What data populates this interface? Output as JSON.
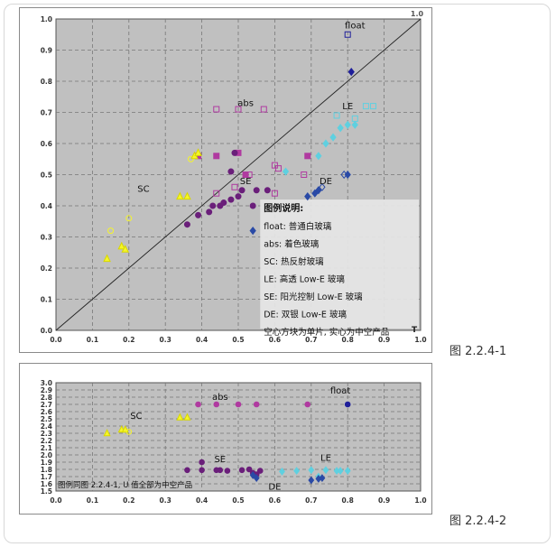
{
  "captions": {
    "fig1": "图 2.2.4-1",
    "fig2": "图 2.2.4-2"
  },
  "colors": {
    "plot_bg": "#c0c0c0",
    "grid": "#777777",
    "float": "#1f1f9a",
    "abs": "#b03aa0",
    "sc": "#f5f52a",
    "le": "#5fd0e0",
    "se": "#6a1f7a",
    "de": "#2a4aa6"
  },
  "chart_data": [
    {
      "type": "scatter",
      "title": "",
      "xlabel": "",
      "ylabel": "",
      "xlim": [
        0.0,
        1.0
      ],
      "ylim": [
        0.0,
        1.0
      ],
      "xticks": [
        "0.0",
        "0.1",
        "0.2",
        "0.3",
        "0.4",
        "0.5",
        "0.6",
        "0.7",
        "0.8",
        "0.9",
        "1.0"
      ],
      "yticks": [
        "0.0",
        "0.1",
        "0.2",
        "0.3",
        "0.4",
        "0.5",
        "0.6",
        "0.7",
        "0.8",
        "0.9",
        "1.0"
      ],
      "grid": true,
      "diagonal": true,
      "corner_label": "1.0",
      "axis_end_label": "T",
      "annotations": [
        {
          "text": "float",
          "x": 0.82,
          "y": 0.97
        },
        {
          "text": "abs",
          "x": 0.52,
          "y": 0.72
        },
        {
          "text": "LE",
          "x": 0.8,
          "y": 0.71
        },
        {
          "text": "SC",
          "x": 0.24,
          "y": 0.445
        },
        {
          "text": "SE",
          "x": 0.52,
          "y": 0.47
        },
        {
          "text": "DE",
          "x": 0.74,
          "y": 0.47
        }
      ],
      "legend": {
        "placement": "bottom-right",
        "title": "图例说明:",
        "lines": [
          "float: 普通白玻璃",
          "abs: 着色玻璃",
          "SC: 热反射玻璃",
          "LE: 高透 Low-E 玻璃",
          "SE: 阳光控制 Low-E 玻璃",
          "DE: 双银 Low-E 玻璃",
          "空心方块为单片, 实心为中空产品"
        ]
      },
      "series": [
        {
          "key": "float",
          "marker": "square",
          "filled": false,
          "points": [
            [
              0.8,
              0.95
            ]
          ]
        },
        {
          "key": "float",
          "marker": "diamond",
          "filled": true,
          "points": [
            [
              0.81,
              0.83
            ]
          ]
        },
        {
          "key": "abs",
          "marker": "square",
          "filled": false,
          "points": [
            [
              0.44,
              0.71
            ],
            [
              0.5,
              0.71
            ],
            [
              0.57,
              0.71
            ],
            [
              0.49,
              0.46
            ],
            [
              0.53,
              0.5
            ],
            [
              0.6,
              0.53
            ],
            [
              0.61,
              0.52
            ],
            [
              0.6,
              0.44
            ],
            [
              0.68,
              0.5
            ],
            [
              0.44,
              0.44
            ]
          ]
        },
        {
          "key": "abs",
          "marker": "square",
          "filled": true,
          "points": [
            [
              0.39,
              0.56
            ],
            [
              0.44,
              0.56
            ],
            [
              0.5,
              0.57
            ],
            [
              0.52,
              0.5
            ],
            [
              0.69,
              0.56
            ]
          ]
        },
        {
          "key": "sc",
          "marker": "circle",
          "filled": false,
          "points": [
            [
              0.15,
              0.32
            ],
            [
              0.2,
              0.36
            ],
            [
              0.37,
              0.55
            ]
          ]
        },
        {
          "key": "sc",
          "marker": "triangle",
          "filled": true,
          "points": [
            [
              0.14,
              0.23
            ],
            [
              0.18,
              0.27
            ],
            [
              0.19,
              0.26
            ],
            [
              0.34,
              0.43
            ],
            [
              0.36,
              0.43
            ],
            [
              0.38,
              0.56
            ],
            [
              0.39,
              0.57
            ]
          ]
        },
        {
          "key": "le",
          "marker": "square",
          "filled": false,
          "points": [
            [
              0.77,
              0.69
            ],
            [
              0.82,
              0.68
            ],
            [
              0.85,
              0.72
            ],
            [
              0.87,
              0.72
            ]
          ]
        },
        {
          "key": "le",
          "marker": "diamond",
          "filled": true,
          "points": [
            [
              0.63,
              0.51
            ],
            [
              0.72,
              0.56
            ],
            [
              0.74,
              0.6
            ],
            [
              0.76,
              0.62
            ],
            [
              0.78,
              0.65
            ],
            [
              0.8,
              0.66
            ],
            [
              0.82,
              0.66
            ]
          ]
        },
        {
          "key": "se",
          "marker": "circle",
          "filled": true,
          "points": [
            [
              0.36,
              0.34
            ],
            [
              0.39,
              0.37
            ],
            [
              0.42,
              0.38
            ],
            [
              0.43,
              0.4
            ],
            [
              0.45,
              0.4
            ],
            [
              0.46,
              0.41
            ],
            [
              0.48,
              0.42
            ],
            [
              0.5,
              0.43
            ],
            [
              0.51,
              0.45
            ],
            [
              0.54,
              0.4
            ],
            [
              0.55,
              0.45
            ],
            [
              0.58,
              0.45
            ],
            [
              0.48,
              0.51
            ],
            [
              0.49,
              0.57
            ]
          ]
        },
        {
          "key": "de",
          "marker": "diamond",
          "filled": true,
          "points": [
            [
              0.54,
              0.32
            ],
            [
              0.69,
              0.43
            ],
            [
              0.71,
              0.44
            ],
            [
              0.72,
              0.45
            ],
            [
              0.8,
              0.5
            ]
          ]
        },
        {
          "key": "de",
          "marker": "diamond",
          "filled": false,
          "points": [
            [
              0.79,
              0.5
            ],
            [
              0.73,
              0.46
            ]
          ]
        }
      ]
    },
    {
      "type": "scatter",
      "title": "",
      "xlabel": "",
      "ylabel": "",
      "xlim": [
        0.0,
        1.0
      ],
      "ylim": [
        1.5,
        3.0
      ],
      "xticks": [
        "0.0",
        "0.1",
        "0.2",
        "0.3",
        "0.4",
        "0.5",
        "0.6",
        "0.7",
        "0.8",
        "0.9",
        "1.0"
      ],
      "yticks": [
        "1.5",
        "1.6",
        "1.7",
        "1.8",
        "1.9",
        "2.0",
        "2.1",
        "2.2",
        "2.3",
        "2.4",
        "2.5",
        "2.6",
        "2.7",
        "2.8",
        "2.9",
        "3.0"
      ],
      "grid": true,
      "note": "图例同图 2.2.4-1, U 值全部为中空产品",
      "annotations": [
        {
          "text": "float",
          "x": 0.78,
          "y": 2.85
        },
        {
          "text": "abs",
          "x": 0.45,
          "y": 2.76
        },
        {
          "text": "SC",
          "x": 0.22,
          "y": 2.5
        },
        {
          "text": "SE",
          "x": 0.45,
          "y": 1.9
        },
        {
          "text": "LE",
          "x": 0.74,
          "y": 1.92
        },
        {
          "text": "DE",
          "x": 0.6,
          "y": 1.52
        }
      ],
      "series": [
        {
          "key": "float",
          "marker": "circle",
          "filled": true,
          "points": [
            [
              0.8,
              2.7
            ]
          ]
        },
        {
          "key": "abs",
          "marker": "circle",
          "filled": true,
          "points": [
            [
              0.39,
              2.7
            ],
            [
              0.44,
              2.7
            ],
            [
              0.5,
              2.7
            ],
            [
              0.55,
              2.7
            ],
            [
              0.69,
              2.7
            ]
          ]
        },
        {
          "key": "sc",
          "marker": "triangle",
          "filled": true,
          "points": [
            [
              0.14,
              2.3
            ],
            [
              0.18,
              2.35
            ],
            [
              0.19,
              2.35
            ],
            [
              0.34,
              2.52
            ],
            [
              0.36,
              2.52
            ]
          ]
        },
        {
          "key": "sc",
          "marker": "circle",
          "filled": false,
          "points": [
            [
              0.2,
              2.32
            ]
          ]
        },
        {
          "key": "se",
          "marker": "circle",
          "filled": true,
          "points": [
            [
              0.36,
              1.79
            ],
            [
              0.4,
              1.9
            ],
            [
              0.4,
              1.79
            ],
            [
              0.44,
              1.79
            ],
            [
              0.45,
              1.79
            ],
            [
              0.47,
              1.78
            ],
            [
              0.51,
              1.79
            ],
            [
              0.53,
              1.8
            ],
            [
              0.54,
              1.75
            ],
            [
              0.55,
              1.73
            ],
            [
              0.56,
              1.78
            ]
          ]
        },
        {
          "key": "le",
          "marker": "diamond",
          "filled": true,
          "points": [
            [
              0.62,
              1.77
            ],
            [
              0.66,
              1.78
            ],
            [
              0.7,
              1.79
            ],
            [
              0.72,
              1.7
            ],
            [
              0.74,
              1.79
            ],
            [
              0.77,
              1.78
            ],
            [
              0.78,
              1.78
            ],
            [
              0.8,
              1.78
            ]
          ]
        },
        {
          "key": "de",
          "marker": "diamond",
          "filled": true,
          "points": [
            [
              0.54,
              1.72
            ],
            [
              0.55,
              1.68
            ],
            [
              0.7,
              1.65
            ],
            [
              0.72,
              1.67
            ],
            [
              0.73,
              1.68
            ]
          ]
        }
      ]
    }
  ]
}
